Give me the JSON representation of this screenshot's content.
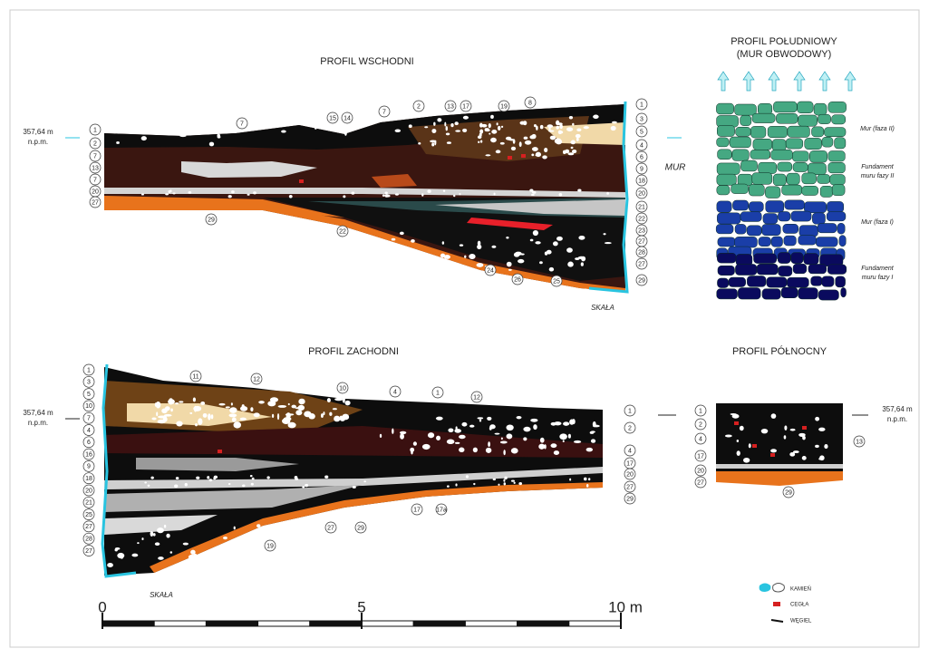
{
  "east_profile": {
    "title": "PROFIL WSCHODNI",
    "elevation": [
      "357,64 m",
      "n.p.m."
    ],
    "side_label": "MUR",
    "rock_label": "SKAŁA",
    "left_labels": [
      "1",
      "2",
      "7",
      "13",
      "7",
      "20",
      "27"
    ],
    "right_labels": [
      "1",
      "3",
      "5",
      "4",
      "6",
      "9",
      "18",
      "20",
      "21",
      "22",
      "23",
      "27",
      "28",
      "27",
      "29"
    ],
    "top_labels": [
      "7",
      "15",
      "14",
      "7",
      "2",
      "13",
      "17",
      "19",
      "8"
    ],
    "bottom_labels": [
      "29",
      "22",
      "24",
      "26",
      "25"
    ]
  },
  "south_profile": {
    "title": [
      "PROFIL POŁUDNIOWY",
      "(MUR OBWODOWY)"
    ],
    "annotations": [
      [
        "Mur (faza II)"
      ],
      [
        "Fundament",
        "muru fazy II"
      ],
      [
        "Mur (faza I)"
      ],
      [
        "Fundament",
        "muru fazy I"
      ]
    ]
  },
  "west_profile": {
    "title": "PROFIL ZACHODNI",
    "elevation": [
      "357,64 m",
      "n.p.m."
    ],
    "rock_label": "SKAŁA",
    "left_labels": [
      "1",
      "3",
      "5",
      "10",
      "7",
      "4",
      "6",
      "16",
      "9",
      "18",
      "20",
      "21",
      "25",
      "27",
      "28",
      "27"
    ],
    "top_labels": [
      "11",
      "12",
      "10",
      "4",
      "1",
      "12"
    ],
    "right_labels": [
      "1",
      "2",
      "4",
      "17",
      "20",
      "27",
      "29"
    ],
    "bottom_labels": [
      "17",
      "17a",
      "27",
      "29",
      "19"
    ]
  },
  "north_profile": {
    "title": "PROFIL PÓŁNOCNY",
    "elevation": [
      "357,64 m",
      "n.p.m."
    ],
    "left_labels": [
      "1",
      "2",
      "4",
      "17",
      "20",
      "27"
    ],
    "right_labels": [
      "13"
    ],
    "bottom_labels": [
      "29"
    ]
  },
  "scale_bar": {
    "labels": [
      "0",
      "5",
      "10 m"
    ]
  },
  "legend": {
    "items": [
      "KAMIEŃ",
      "CEGŁA",
      "WĘGIEL"
    ]
  }
}
